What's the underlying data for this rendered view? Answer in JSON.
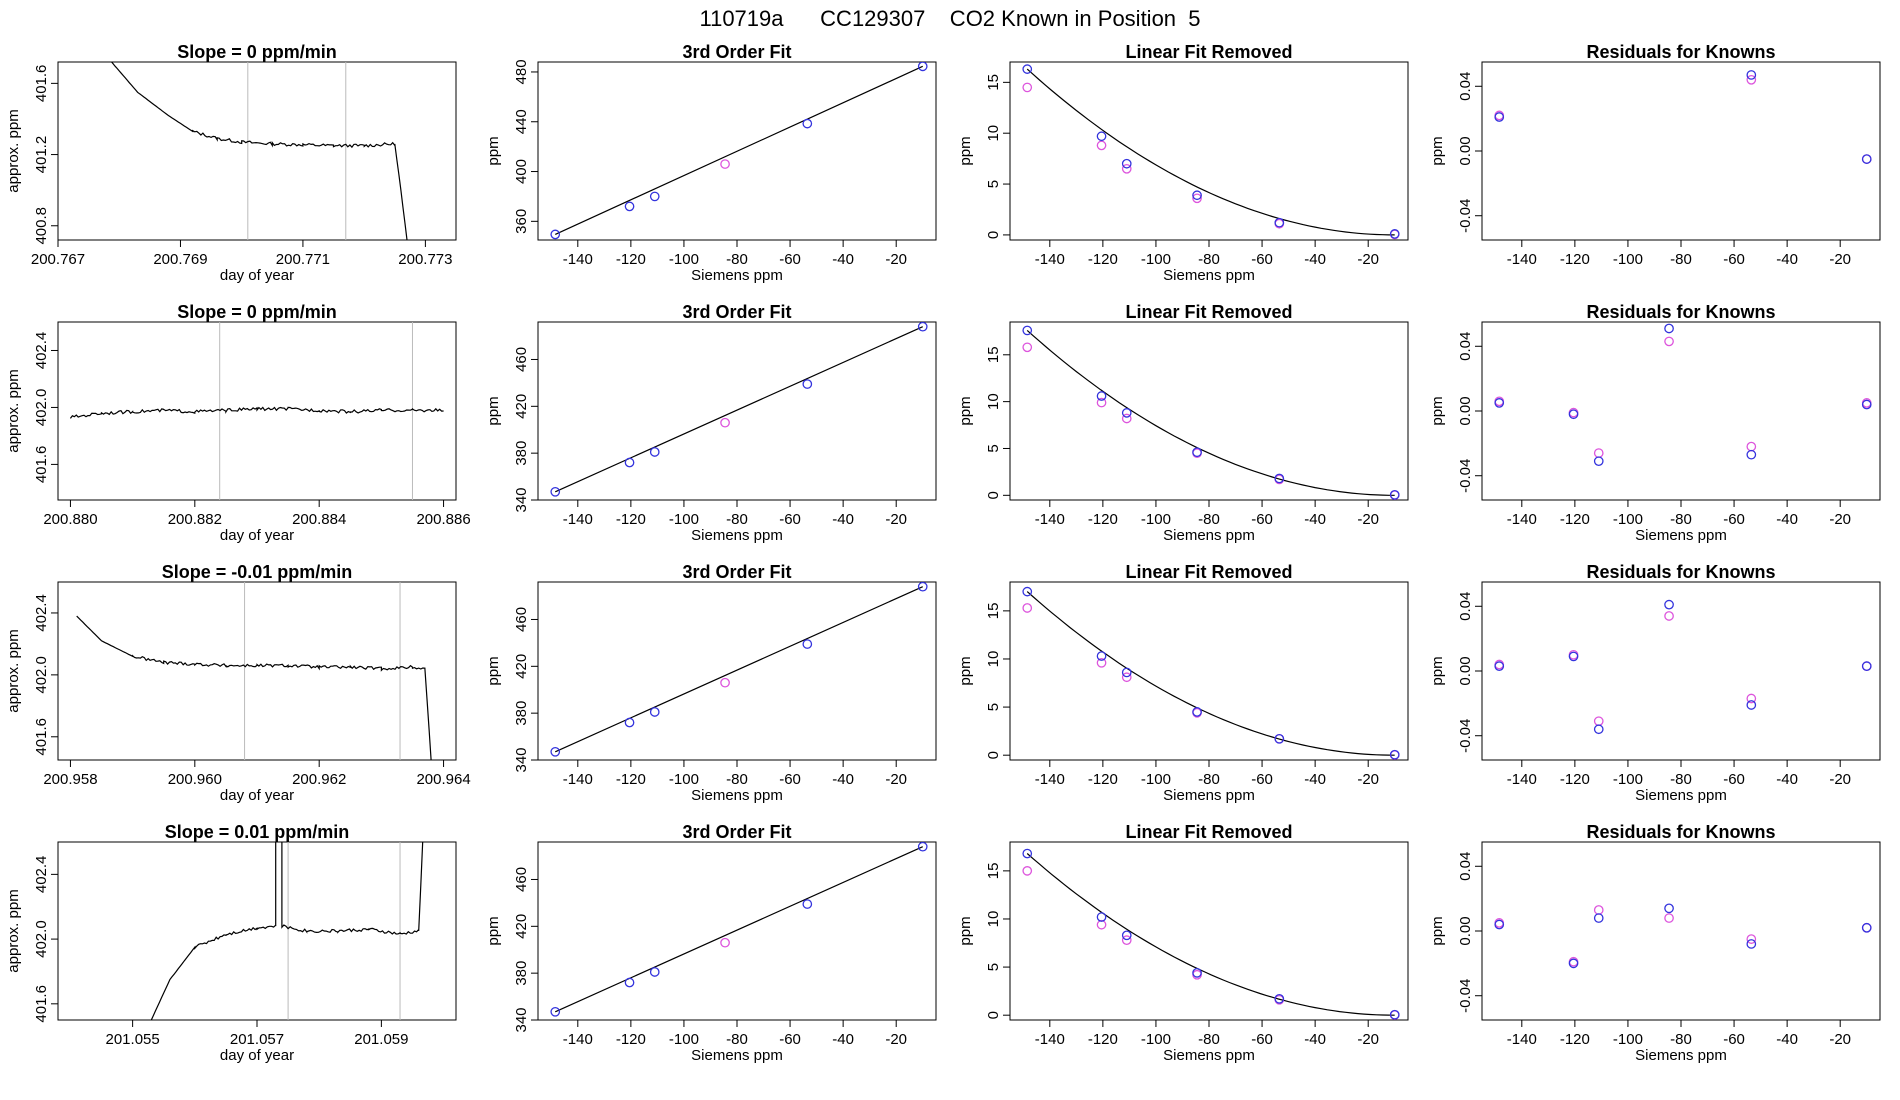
{
  "page_title": "110719a      CC129307    CO2 Known in Position  5",
  "colors": {
    "blue": "#3333dd",
    "magenta": "#dd55dd",
    "line": "#000000",
    "vline": "#bbbbbb"
  },
  "chart_data": [
    {
      "type": "line",
      "title": "Slope =  0  ppm/min",
      "xlabel": "day of year",
      "ylabel": "approx. ppm",
      "xlim": [
        200.767,
        200.7735
      ],
      "ylim": [
        400.72,
        401.72
      ],
      "xticks": [
        "200.767",
        "200.769",
        "200.771",
        "200.773"
      ],
      "yticks": [
        "400.8",
        "401.2",
        "401.6"
      ],
      "vlines": [
        200.7701,
        200.7717
      ],
      "trace": [
        [
          200.7678,
          401.75
        ],
        [
          200.7683,
          401.55
        ],
        [
          200.7688,
          401.42
        ],
        [
          200.7692,
          401.33
        ],
        [
          200.7696,
          401.29
        ],
        [
          200.77,
          401.27
        ],
        [
          200.7705,
          401.26
        ],
        [
          200.771,
          401.255
        ],
        [
          200.7715,
          401.25
        ],
        [
          200.772,
          401.25
        ],
        [
          200.7725,
          401.26
        ],
        [
          200.7726,
          401.0
        ],
        [
          200.7727,
          400.72
        ]
      ]
    },
    {
      "type": "scatter",
      "title": "3rd Order Fit",
      "xlabel": "Siemens ppm",
      "ylabel": "ppm",
      "xlim": [
        -155,
        -5
      ],
      "ylim": [
        345,
        488
      ],
      "xticks": [
        "-140",
        "-120",
        "-100",
        "-80",
        "-60",
        "-40",
        "-20"
      ],
      "yticks": [
        "360",
        "400",
        "440",
        "480"
      ],
      "fit_line": true,
      "points_blue": [
        [
          -148.5,
          349.5
        ],
        [
          -120.5,
          372
        ],
        [
          -111,
          380
        ],
        [
          -53.5,
          438.5
        ],
        [
          -10,
          484.5
        ]
      ],
      "points_magenta": [
        [
          -84.5,
          406
        ]
      ]
    },
    {
      "type": "scatter",
      "title": "Linear Fit Removed",
      "xlabel": "Siemens ppm",
      "ylabel": "ppm",
      "xlim": [
        -155,
        -5
      ],
      "ylim": [
        -0.5,
        17
      ],
      "xticks": [
        "-140",
        "-120",
        "-100",
        "-80",
        "-60",
        "-40",
        "-20"
      ],
      "yticks": [
        "0",
        "5",
        "10",
        "15"
      ],
      "fit_curve": [
        -148.5,
        16.3
      ],
      "points_blue": [
        [
          -148.5,
          16.3
        ],
        [
          -120.5,
          9.7
        ],
        [
          -111,
          7
        ],
        [
          -84.5,
          3.9
        ],
        [
          -53.5,
          1.2
        ],
        [
          -10,
          0.1
        ]
      ],
      "points_magenta": [
        [
          -148.5,
          14.5
        ],
        [
          -120.5,
          8.8
        ],
        [
          -111,
          6.5
        ],
        [
          -84.5,
          3.6
        ],
        [
          -53.5,
          1.1
        ],
        [
          -10,
          0.05
        ]
      ]
    },
    {
      "type": "scatter",
      "title": "Residuals for Knowns",
      "xlabel": "",
      "ylabel": "ppm",
      "xlim": [
        -155,
        -5
      ],
      "ylim": [
        -0.055,
        0.055
      ],
      "xticks": [
        "-140",
        "-120",
        "-100",
        "-80",
        "-60",
        "-40",
        "-20"
      ],
      "yticks": [
        "-0.04",
        "0.00",
        "0.04"
      ],
      "points_blue": [
        [
          -148.5,
          0.021
        ],
        [
          -53.5,
          0.047
        ],
        [
          -10,
          -0.005
        ]
      ],
      "points_magenta": [
        [
          -148.5,
          0.022
        ],
        [
          -53.5,
          0.044
        ],
        [
          -10,
          -0.005
        ]
      ]
    },
    {
      "type": "line",
      "title": "Slope =  0  ppm/min",
      "xlabel": "day of year",
      "ylabel": "approx. ppm",
      "xlim": [
        200.8798,
        200.8862
      ],
      "ylim": [
        401.35,
        402.6
      ],
      "xticks": [
        "200.880",
        "200.882",
        "200.884",
        "200.886"
      ],
      "yticks": [
        "401.6",
        "402.0",
        "402.4"
      ],
      "vlines": [
        200.8824,
        200.8855
      ],
      "trace": [
        [
          200.88,
          401.93
        ],
        [
          200.8805,
          401.96
        ],
        [
          200.881,
          401.97
        ],
        [
          200.8815,
          401.98
        ],
        [
          200.882,
          401.97
        ],
        [
          200.8825,
          401.98
        ],
        [
          200.883,
          401.99
        ],
        [
          200.8835,
          401.99
        ],
        [
          200.884,
          401.98
        ],
        [
          200.8845,
          401.97
        ],
        [
          200.885,
          401.98
        ],
        [
          200.8855,
          401.98
        ],
        [
          200.886,
          401.98
        ]
      ]
    },
    {
      "type": "scatter",
      "title": "3rd Order Fit",
      "xlabel": "Siemens ppm",
      "ylabel": "ppm",
      "xlim": [
        -155,
        -5
      ],
      "ylim": [
        340,
        492
      ],
      "xticks": [
        "-140",
        "-120",
        "-100",
        "-80",
        "-60",
        "-40",
        "-20"
      ],
      "yticks": [
        "340",
        "380",
        "420",
        "460"
      ],
      "fit_line": true,
      "points_blue": [
        [
          -148.5,
          347
        ],
        [
          -120.5,
          372
        ],
        [
          -111,
          381
        ],
        [
          -53.5,
          439
        ],
        [
          -10,
          488
        ]
      ],
      "points_magenta": [
        [
          -84.5,
          406
        ]
      ]
    },
    {
      "type": "scatter",
      "title": "Linear Fit Removed",
      "xlabel": "Siemens ppm",
      "ylabel": "ppm",
      "xlim": [
        -155,
        -5
      ],
      "ylim": [
        -0.5,
        18.5
      ],
      "xticks": [
        "-140",
        "-120",
        "-100",
        "-80",
        "-60",
        "-40",
        "-20"
      ],
      "yticks": [
        "0",
        "5",
        "10",
        "15"
      ],
      "fit_curve": [
        -148.5,
        17.6
      ],
      "points_blue": [
        [
          -148.5,
          17.6
        ],
        [
          -120.5,
          10.6
        ],
        [
          -111,
          8.8
        ],
        [
          -84.5,
          4.6
        ],
        [
          -53.5,
          1.8
        ],
        [
          -10,
          0.05
        ]
      ],
      "points_magenta": [
        [
          -148.5,
          15.8
        ],
        [
          -120.5,
          9.9
        ],
        [
          -111,
          8.2
        ],
        [
          -84.5,
          4.5
        ],
        [
          -53.5,
          1.7
        ],
        [
          -10,
          0.02
        ]
      ]
    },
    {
      "type": "scatter",
      "title": "Residuals for Knowns",
      "xlabel": "Siemens ppm",
      "ylabel": "ppm",
      "xlim": [
        -155,
        -5
      ],
      "ylim": [
        -0.055,
        0.055
      ],
      "xticks": [
        "-140",
        "-120",
        "-100",
        "-80",
        "-60",
        "-40",
        "-20"
      ],
      "yticks": [
        "-0.04",
        "0.00",
        "0.04"
      ],
      "points_blue": [
        [
          -148.5,
          0.005
        ],
        [
          -120.5,
          -0.002
        ],
        [
          -111,
          -0.031
        ],
        [
          -84.5,
          0.051
        ],
        [
          -53.5,
          -0.027
        ],
        [
          -10,
          0.004
        ]
      ],
      "points_magenta": [
        [
          -148.5,
          0.006
        ],
        [
          -120.5,
          -0.001
        ],
        [
          -111,
          -0.026
        ],
        [
          -84.5,
          0.043
        ],
        [
          -53.5,
          -0.022
        ],
        [
          -10,
          0.005
        ]
      ]
    },
    {
      "type": "line",
      "title": "Slope =  -0.01  ppm/min",
      "xlabel": "day of year",
      "ylabel": "approx. ppm",
      "xlim": [
        200.9578,
        200.9642
      ],
      "ylim": [
        401.45,
        402.6
      ],
      "xticks": [
        "200.958",
        "200.960",
        "200.962",
        "200.964"
      ],
      "yticks": [
        "401.6",
        "402.0",
        "402.4"
      ],
      "vlines": [
        200.9608,
        200.9633
      ],
      "trace": [
        [
          200.9581,
          402.38
        ],
        [
          200.9585,
          402.22
        ],
        [
          200.959,
          402.12
        ],
        [
          200.9595,
          402.08
        ],
        [
          200.96,
          402.07
        ],
        [
          200.9605,
          402.06
        ],
        [
          200.961,
          402.06
        ],
        [
          200.9615,
          402.06
        ],
        [
          200.962,
          402.05
        ],
        [
          200.9625,
          402.05
        ],
        [
          200.963,
          402.04
        ],
        [
          200.9635,
          402.05
        ],
        [
          200.9637,
          402.04
        ],
        [
          200.9638,
          401.45
        ]
      ]
    },
    {
      "type": "scatter",
      "title": "3rd Order Fit",
      "xlabel": "Siemens ppm",
      "ylabel": "ppm",
      "xlim": [
        -155,
        -5
      ],
      "ylim": [
        340,
        492
      ],
      "xticks": [
        "-140",
        "-120",
        "-100",
        "-80",
        "-60",
        "-40",
        "-20"
      ],
      "yticks": [
        "340",
        "380",
        "420",
        "460"
      ],
      "fit_line": true,
      "points_blue": [
        [
          -148.5,
          347
        ],
        [
          -120.5,
          372
        ],
        [
          -111,
          381
        ],
        [
          -53.5,
          439
        ],
        [
          -10,
          488
        ]
      ],
      "points_magenta": [
        [
          -84.5,
          406
        ]
      ]
    },
    {
      "type": "scatter",
      "title": "Linear Fit Removed",
      "xlabel": "Siemens ppm",
      "ylabel": "ppm",
      "xlim": [
        -155,
        -5
      ],
      "ylim": [
        -0.5,
        18
      ],
      "xticks": [
        "-140",
        "-120",
        "-100",
        "-80",
        "-60",
        "-40",
        "-20"
      ],
      "yticks": [
        "0",
        "5",
        "10",
        "15"
      ],
      "fit_curve": [
        -148.5,
        17.0
      ],
      "points_blue": [
        [
          -148.5,
          17.0
        ],
        [
          -120.5,
          10.3
        ],
        [
          -111,
          8.6
        ],
        [
          -84.5,
          4.5
        ],
        [
          -53.5,
          1.7
        ],
        [
          -10,
          0.05
        ]
      ],
      "points_magenta": [
        [
          -148.5,
          15.3
        ],
        [
          -120.5,
          9.6
        ],
        [
          -111,
          8.1
        ],
        [
          -84.5,
          4.4
        ],
        [
          -53.5,
          1.7
        ],
        [
          -10,
          0.02
        ]
      ]
    },
    {
      "type": "scatter",
      "title": "Residuals for Knowns",
      "xlabel": "Siemens ppm",
      "ylabel": "ppm",
      "xlim": [
        -155,
        -5
      ],
      "ylim": [
        -0.055,
        0.055
      ],
      "xticks": [
        "-140",
        "-120",
        "-100",
        "-80",
        "-60",
        "-40",
        "-20"
      ],
      "yticks": [
        "-0.04",
        "0.00",
        "0.04"
      ],
      "points_blue": [
        [
          -148.5,
          0.003
        ],
        [
          -120.5,
          0.009
        ],
        [
          -111,
          -0.036
        ],
        [
          -84.5,
          0.041
        ],
        [
          -53.5,
          -0.021
        ],
        [
          -10,
          0.003
        ]
      ],
      "points_magenta": [
        [
          -148.5,
          0.004
        ],
        [
          -120.5,
          0.01
        ],
        [
          -111,
          -0.031
        ],
        [
          -84.5,
          0.034
        ],
        [
          -53.5,
          -0.017
        ],
        [
          -10,
          0.003
        ]
      ]
    },
    {
      "type": "line",
      "title": "Slope =  0.01  ppm/min",
      "xlabel": "day of year",
      "ylabel": "approx. ppm",
      "xlim": [
        201.0538,
        201.0602
      ],
      "ylim": [
        401.5,
        402.6
      ],
      "xticks": [
        "201.055",
        "201.057",
        "201.059"
      ],
      "yticks": [
        "401.6",
        "402.0",
        "402.4"
      ],
      "vlines": [
        201.0575,
        201.0593
      ],
      "trace": [
        [
          201.0553,
          401.5
        ],
        [
          201.0556,
          401.75
        ],
        [
          201.056,
          401.95
        ],
        [
          201.0565,
          402.03
        ],
        [
          201.057,
          402.07
        ],
        [
          201.0573,
          402.08
        ],
        [
          201.0573,
          402.9
        ],
        [
          201.0574,
          402.9
        ],
        [
          201.0574,
          402.08
        ],
        [
          201.0578,
          402.05
        ],
        [
          201.0583,
          402.05
        ],
        [
          201.0588,
          402.06
        ],
        [
          201.0593,
          402.03
        ],
        [
          201.0596,
          402.05
        ],
        [
          201.0597,
          402.9
        ]
      ]
    },
    {
      "type": "scatter",
      "title": "3rd Order Fit",
      "xlabel": "Siemens ppm",
      "ylabel": "ppm",
      "xlim": [
        -155,
        -5
      ],
      "ylim": [
        340,
        492
      ],
      "xticks": [
        "-140",
        "-120",
        "-100",
        "-80",
        "-60",
        "-40",
        "-20"
      ],
      "yticks": [
        "340",
        "380",
        "420",
        "460"
      ],
      "fit_line": true,
      "points_blue": [
        [
          -148.5,
          347
        ],
        [
          -120.5,
          372
        ],
        [
          -111,
          381
        ],
        [
          -53.5,
          439
        ],
        [
          -10,
          488
        ]
      ],
      "points_magenta": [
        [
          -84.5,
          406
        ]
      ]
    },
    {
      "type": "scatter",
      "title": "Linear Fit Removed",
      "xlabel": "Siemens ppm",
      "ylabel": "ppm",
      "xlim": [
        -155,
        -5
      ],
      "ylim": [
        -0.5,
        18
      ],
      "xticks": [
        "-140",
        "-120",
        "-100",
        "-80",
        "-60",
        "-40",
        "-20"
      ],
      "yticks": [
        "0",
        "5",
        "10",
        "15"
      ],
      "fit_curve": [
        -148.5,
        16.8
      ],
      "points_blue": [
        [
          -148.5,
          16.8
        ],
        [
          -120.5,
          10.2
        ],
        [
          -111,
          8.3
        ],
        [
          -84.5,
          4.4
        ],
        [
          -53.5,
          1.7
        ],
        [
          -10,
          0.05
        ]
      ],
      "points_magenta": [
        [
          -148.5,
          15.0
        ],
        [
          -120.5,
          9.4
        ],
        [
          -111,
          7.8
        ],
        [
          -84.5,
          4.2
        ],
        [
          -53.5,
          1.6
        ],
        [
          -10,
          0.02
        ]
      ]
    },
    {
      "type": "scatter",
      "title": "Residuals for Knowns",
      "xlabel": "Siemens ppm",
      "ylabel": "ppm",
      "xlim": [
        -155,
        -5
      ],
      "ylim": [
        -0.055,
        0.055
      ],
      "xticks": [
        "-140",
        "-120",
        "-100",
        "-80",
        "-60",
        "-40",
        "-20"
      ],
      "yticks": [
        "-0.04",
        "0.00",
        "0.04"
      ],
      "points_blue": [
        [
          -148.5,
          0.004
        ],
        [
          -120.5,
          -0.02
        ],
        [
          -111,
          0.008
        ],
        [
          -84.5,
          0.014
        ],
        [
          -53.5,
          -0.008
        ],
        [
          -10,
          0.002
        ]
      ],
      "points_magenta": [
        [
          -148.5,
          0.005
        ],
        [
          -120.5,
          -0.019
        ],
        [
          -111,
          0.013
        ],
        [
          -84.5,
          0.008
        ],
        [
          -53.5,
          -0.005
        ],
        [
          -10,
          0.002
        ]
      ]
    }
  ]
}
